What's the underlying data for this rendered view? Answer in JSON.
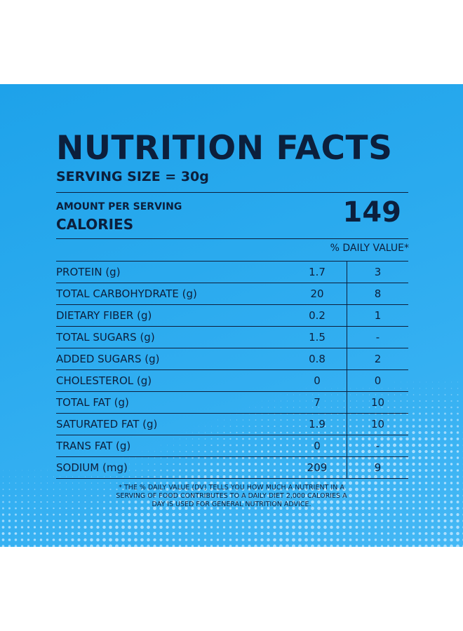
{
  "label": {
    "title": "NUTRITION FACTS",
    "serving_size": "SERVING SIZE = 30g",
    "amount_per_serving": "AMOUNT PER SERVING",
    "calories_label": "CALORIES",
    "calories_value": "149",
    "daily_value_header": "% DAILY VALUE*",
    "rows": [
      {
        "name": "PROTEIN (g)",
        "amount": "1.7",
        "dv": "3"
      },
      {
        "name": "TOTAL CARBOHYDRATE (g)",
        "amount": "20",
        "dv": "8"
      },
      {
        "name": "DIETARY FIBER (g)",
        "amount": "0.2",
        "dv": "1"
      },
      {
        "name": "TOTAL SUGARS (g)",
        "amount": "1.5",
        "dv": "-"
      },
      {
        "name": "ADDED SUGARS (g)",
        "amount": "0.8",
        "dv": "2"
      },
      {
        "name": "CHOLESTEROL (g)",
        "amount": "0",
        "dv": "0"
      },
      {
        "name": "TOTAL FAT (g)",
        "amount": "7",
        "dv": "10"
      },
      {
        "name": "SATURATED FAT (g)",
        "amount": "1.9",
        "dv": "10"
      },
      {
        "name": "TRANS FAT (g)",
        "amount": "0",
        "dv": "-"
      },
      {
        "name": "SODIUM (mg)",
        "amount": "209",
        "dv": "9"
      }
    ],
    "footnote": "* THE % DAILY VALUE (DV) TELLS YOU HOW MUCH A NUTRIENT IN A SERVING OF FOOD CONTRIBUTES TO A DAILY DIET 2,000 CALORIES A DAY IS USED FOR GENERAL NUTRITION ADVICE."
  },
  "colors": {
    "background": "#2aaaee",
    "text": "#0c1f3c",
    "dots": "#bfe6ff"
  }
}
